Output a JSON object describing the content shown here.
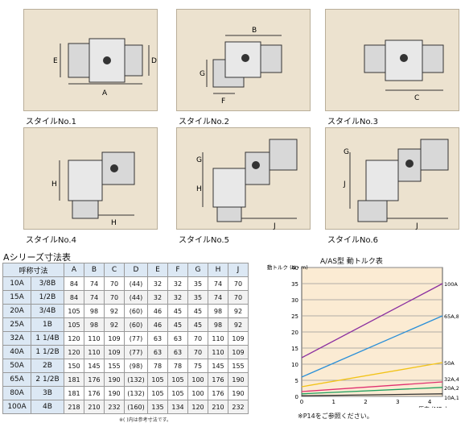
{
  "styles": [
    {
      "label": "スタイルNo.1",
      "dims": [
        "A",
        "D",
        "E"
      ]
    },
    {
      "label": "スタイルNo.2",
      "dims": [
        "B",
        "F",
        "G"
      ]
    },
    {
      "label": "スタイルNo.3",
      "dims": [
        "C"
      ]
    },
    {
      "label": "スタイルNo.4",
      "dims": [
        "H"
      ]
    },
    {
      "label": "スタイルNo.5",
      "dims": [
        "G",
        "H",
        "J"
      ]
    },
    {
      "label": "スタイルNo.6",
      "dims": [
        "G",
        "J"
      ]
    }
  ],
  "dimension_table": {
    "title": "Aシリーズ寸法表",
    "headers": [
      "呼称寸法",
      "A",
      "B",
      "C",
      "D",
      "E",
      "F",
      "G",
      "H",
      "J"
    ],
    "rows": [
      {
        "size": "10A",
        "pipe": "3/8B",
        "values": [
          "84",
          "74",
          "70",
          "(44)",
          "32",
          "32",
          "35",
          "74",
          "70"
        ]
      },
      {
        "size": "15A",
        "pipe": "1/2B",
        "values": [
          "84",
          "74",
          "70",
          "(44)",
          "32",
          "32",
          "35",
          "74",
          "70"
        ]
      },
      {
        "size": "20A",
        "pipe": "3/4B",
        "values": [
          "105",
          "98",
          "92",
          "(60)",
          "46",
          "45",
          "45",
          "98",
          "92"
        ]
      },
      {
        "size": "25A",
        "pipe": "1B",
        "values": [
          "105",
          "98",
          "92",
          "(60)",
          "46",
          "45",
          "45",
          "98",
          "92"
        ]
      },
      {
        "size": "32A",
        "pipe": "1 1/4B",
        "values": [
          "120",
          "110",
          "109",
          "(77)",
          "63",
          "63",
          "70",
          "110",
          "109"
        ]
      },
      {
        "size": "40A",
        "pipe": "1 1/2B",
        "values": [
          "120",
          "110",
          "109",
          "(77)",
          "63",
          "63",
          "70",
          "110",
          "109"
        ]
      },
      {
        "size": "50A",
        "pipe": "2B",
        "values": [
          "150",
          "145",
          "155",
          "(98)",
          "78",
          "78",
          "75",
          "145",
          "155"
        ]
      },
      {
        "size": "65A",
        "pipe": "2 1/2B",
        "values": [
          "181",
          "176",
          "190",
          "(132)",
          "105",
          "105",
          "100",
          "176",
          "190"
        ]
      },
      {
        "size": "80A",
        "pipe": "3B",
        "values": [
          "181",
          "176",
          "190",
          "(132)",
          "105",
          "105",
          "100",
          "176",
          "190"
        ]
      },
      {
        "size": "100A",
        "pipe": "4B",
        "values": [
          "218",
          "210",
          "232",
          "(160)",
          "135",
          "134",
          "120",
          "210",
          "232"
        ]
      }
    ],
    "note": "※( )内は参考寸法です。"
  },
  "chart_data": {
    "type": "line",
    "title": "A/AS型 動トルク表",
    "ylabel": "動トルク\n(N・m)",
    "xlabel": "圧力 (MPa)",
    "xlim": [
      0,
      4.4
    ],
    "ylim": [
      0,
      40
    ],
    "xticks": [
      0,
      1,
      2,
      3,
      4
    ],
    "yticks": [
      0,
      5,
      10,
      15,
      20,
      25,
      30,
      35,
      40
    ],
    "grid": true,
    "series": [
      {
        "name": "100A",
        "color": "#8b2fa0",
        "x": [
          0,
          4.4
        ],
        "y": [
          12,
          35
        ]
      },
      {
        "name": "65A,80A",
        "color": "#2a8fd8",
        "x": [
          0,
          4.4
        ],
        "y": [
          6,
          25
        ]
      },
      {
        "name": "50A",
        "color": "#f2c318",
        "x": [
          0,
          4.4
        ],
        "y": [
          3,
          10.5
        ]
      },
      {
        "name": "32A,40A",
        "color": "#e03070",
        "x": [
          0,
          4.4
        ],
        "y": [
          1.5,
          4.5
        ]
      },
      {
        "name": "20A,25A",
        "color": "#20a060",
        "x": [
          0,
          4.4
        ],
        "y": [
          0.8,
          2.8
        ]
      },
      {
        "name": "10A,15A",
        "color": "#333333",
        "x": [
          0,
          4.4
        ],
        "y": [
          0.2,
          0.8
        ]
      }
    ],
    "note": "※P14をご参照ください。"
  }
}
